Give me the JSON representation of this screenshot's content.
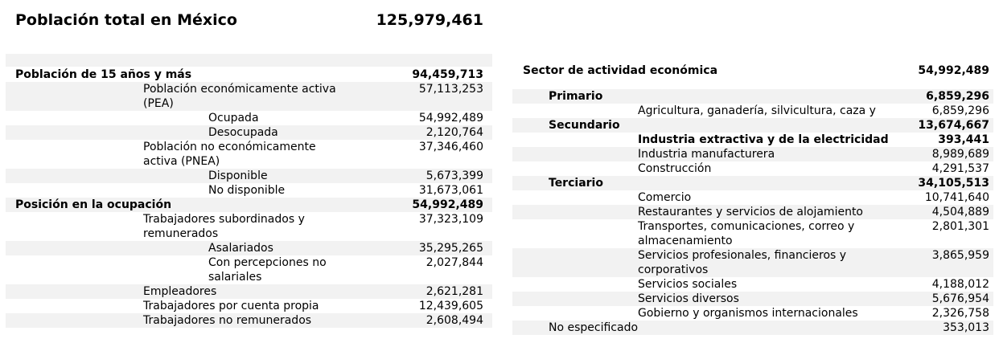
{
  "header": {
    "title": "Población total en México",
    "total": "125,979,461"
  },
  "left": {
    "rows": [
      {
        "label": "Población de 15 años y más",
        "value": "94,459,713",
        "level": 0,
        "bold": true,
        "shade": false,
        "h": 18
      },
      {
        "label": "Población económicamente activa (PEA)",
        "value": "57,113,253",
        "level": 1,
        "bold": false,
        "shade": true,
        "h": 36
      },
      {
        "label": "Ocupada",
        "value": "54,992,489",
        "level": 2,
        "bold": false,
        "shade": false,
        "h": 18
      },
      {
        "label": "Desocupada",
        "value": "2,120,764",
        "level": 2,
        "bold": false,
        "shade": true,
        "h": 18
      },
      {
        "label": "Población no económicamente activa (PNEA)",
        "value": "37,346,460",
        "level": 1,
        "bold": false,
        "shade": false,
        "h": 36
      },
      {
        "label": "Disponible",
        "value": "5,673,399",
        "level": 2,
        "bold": false,
        "shade": true,
        "h": 18
      },
      {
        "label": "No disponible",
        "value": "31,673,061",
        "level": 2,
        "bold": false,
        "shade": false,
        "h": 18
      },
      {
        "label": "Posición en la ocupación",
        "value": "54,992,489",
        "level": 0,
        "bold": true,
        "shade": true,
        "h": 18
      },
      {
        "label": "Trabajadores subordinados y remunerados",
        "value": "37,323,109",
        "level": 1,
        "bold": false,
        "shade": false,
        "h": 36
      },
      {
        "label": "Asalariados",
        "value": "35,295,265",
        "level": 2,
        "bold": false,
        "shade": true,
        "h": 18
      },
      {
        "label": "Con percepciones no salariales",
        "value": "2,027,844",
        "level": 2,
        "bold": false,
        "shade": false,
        "h": 36
      },
      {
        "label": "Empleadores",
        "value": "2,621,281",
        "level": 1,
        "bold": false,
        "shade": true,
        "h": 18
      },
      {
        "label": "Trabajadores por cuenta propia",
        "value": "12,439,605",
        "level": 1,
        "bold": false,
        "shade": false,
        "h": 18
      },
      {
        "label": "Trabajadores no remunerados",
        "value": "2,608,494",
        "level": 1,
        "bold": false,
        "shade": true,
        "h": 18
      }
    ]
  },
  "right": {
    "rows": [
      {
        "label": "Sector de actividad económica",
        "value": "54,992,489",
        "level": 0,
        "bold": true,
        "shade": false,
        "h": 36
      },
      {
        "label": "Primario",
        "value": "6,859,296",
        "level": 1,
        "bold": true,
        "shade": true,
        "h": 18
      },
      {
        "label": "Agricultura, ganadería, silvicultura, caza y pesca",
        "value": "6,859,296",
        "level": 2,
        "bold": false,
        "shade": false,
        "h": 18
      },
      {
        "label": "Secundario",
        "value": "13,674,667",
        "level": 1,
        "bold": true,
        "shade": true,
        "h": 18
      },
      {
        "label": "Industria extractiva y de la electricidad",
        "value": "393,441",
        "level": 2,
        "bold": true,
        "shade": false,
        "h": 18
      },
      {
        "label": "Industria manufacturera",
        "value": "8,989,689",
        "level": 2,
        "bold": false,
        "shade": true,
        "h": 18
      },
      {
        "label": "Construcción",
        "value": "4,291,537",
        "level": 2,
        "bold": false,
        "shade": false,
        "h": 18
      },
      {
        "label": "Terciario",
        "value": "34,105,513",
        "level": 1,
        "bold": true,
        "shade": true,
        "h": 18
      },
      {
        "label": "Comercio",
        "value": "10,741,640",
        "level": 2,
        "bold": false,
        "shade": false,
        "h": 18
      },
      {
        "label": "Restaurantes y servicios de alojamiento",
        "value": "4,504,889",
        "level": 2,
        "bold": false,
        "shade": true,
        "h": 18
      },
      {
        "label": "Transportes, comunicaciones, correo y almacenamiento",
        "value": "2,801,301",
        "level": 2,
        "bold": false,
        "shade": false,
        "h": 36
      },
      {
        "label": "Servicios profesionales, financieros y corporativos",
        "value": "3,865,959",
        "level": 2,
        "bold": false,
        "shade": true,
        "h": 36
      },
      {
        "label": "Servicios sociales",
        "value": "4,188,012",
        "level": 2,
        "bold": false,
        "shade": false,
        "h": 18
      },
      {
        "label": "Servicios diversos",
        "value": "5,676,954",
        "level": 2,
        "bold": false,
        "shade": true,
        "h": 18
      },
      {
        "label": "Gobierno y organismos internacionales",
        "value": "2,326,758",
        "level": 2,
        "bold": false,
        "shade": false,
        "h": 18
      },
      {
        "label": "No especificado",
        "value": "353,013",
        "level": 1,
        "bold": false,
        "shade": true,
        "h": 18
      }
    ]
  }
}
